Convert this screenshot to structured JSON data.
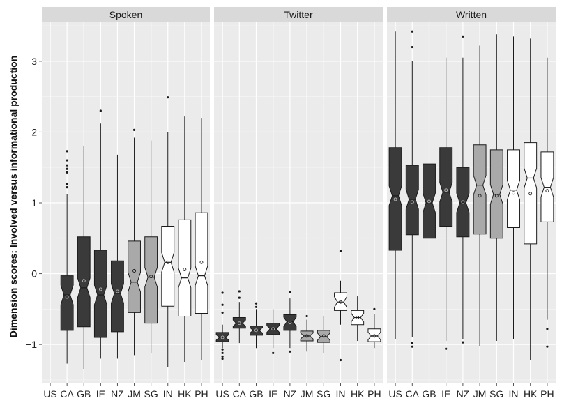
{
  "chart_data": {
    "type": "boxplot",
    "ylabel": "Dimension scores: Involved versus informational production",
    "ylim": [
      -1.55,
      3.55
    ],
    "y_ticks": [
      -1,
      0,
      1,
      2,
      3
    ],
    "y_tick_labels": [
      "−1",
      "0",
      "1",
      "2",
      "3"
    ],
    "categories": [
      "US",
      "CA",
      "GB",
      "IE",
      "NZ",
      "JM",
      "SG",
      "IN",
      "HK",
      "PH"
    ],
    "fill_colors": [
      "#3a3a3a",
      "#3a3a3a",
      "#3a3a3a",
      "#3a3a3a",
      "#3a3a3a",
      "#a9a9a9",
      "#a9a9a9",
      "#ffffff",
      "#ffffff",
      "#ffffff"
    ],
    "panel_background": "#ebebeb",
    "strip_background": "#d9d9d9",
    "grid": true,
    "panels": [
      {
        "name": "Spoken",
        "boxes": [
          null,
          {
            "cat": "CA",
            "min": -1.27,
            "q1": -0.8,
            "med": -0.3,
            "q3": -0.03,
            "max": 1.12,
            "mean": -0.33,
            "outliers": [
              1.22,
              1.27,
              1.43,
              1.48,
              1.53,
              1.6,
              1.73
            ]
          },
          {
            "cat": "GB",
            "min": -1.35,
            "q1": -0.75,
            "med": -0.2,
            "q3": 0.52,
            "max": 1.8,
            "mean": -0.1,
            "outliers": []
          },
          {
            "cat": "IE",
            "min": -1.2,
            "q1": -0.9,
            "med": -0.3,
            "q3": 0.33,
            "max": 2.12,
            "mean": -0.22,
            "outliers": [
              2.3
            ]
          },
          {
            "cat": "NZ",
            "min": -1.2,
            "q1": -0.82,
            "med": -0.28,
            "q3": 0.18,
            "max": 1.68,
            "mean": -0.25,
            "outliers": []
          },
          {
            "cat": "JM",
            "min": -1.15,
            "q1": -0.55,
            "med": -0.12,
            "q3": 0.46,
            "max": 1.92,
            "mean": 0.04,
            "outliers": [
              2.03
            ]
          },
          {
            "cat": "SG",
            "min": -1.12,
            "q1": -0.7,
            "med": -0.05,
            "q3": 0.52,
            "max": 1.88,
            "mean": -0.04,
            "outliers": []
          },
          {
            "cat": "IN",
            "min": -1.32,
            "q1": -0.46,
            "med": 0.16,
            "q3": 0.67,
            "max": 2.0,
            "mean": 0.16,
            "outliers": [
              2.49
            ]
          },
          {
            "cat": "HK",
            "min": -1.25,
            "q1": -0.6,
            "med": -0.06,
            "q3": 0.76,
            "max": 2.22,
            "mean": 0.06,
            "outliers": []
          },
          {
            "cat": "PH",
            "min": -1.22,
            "q1": -0.56,
            "med": -0.03,
            "q3": 0.86,
            "max": 2.2,
            "mean": 0.16,
            "outliers": []
          }
        ]
      },
      {
        "name": "Twitter",
        "boxes": [
          {
            "cat": "US",
            "min": -1.05,
            "q1": -0.96,
            "med": -0.9,
            "q3": -0.83,
            "max": -0.72,
            "mean": -0.9,
            "outliers": [
              -1.07,
              -1.12,
              -1.17,
              -1.2,
              -0.55,
              -0.44,
              -0.27
            ]
          },
          {
            "cat": "CA",
            "min": -0.98,
            "q1": -0.77,
            "med": -0.7,
            "q3": -0.62,
            "max": -0.4,
            "mean": -0.7,
            "outliers": [
              -0.34,
              -0.25
            ]
          },
          {
            "cat": "GB",
            "min": -1.05,
            "q1": -0.87,
            "med": -0.8,
            "q3": -0.74,
            "max": -0.5,
            "mean": -0.8,
            "outliers": [
              -0.47,
              -0.42
            ]
          },
          {
            "cat": "IE",
            "min": -1.05,
            "q1": -0.86,
            "med": -0.78,
            "q3": -0.7,
            "max": -0.5,
            "mean": -0.78,
            "outliers": [
              -1.12
            ]
          },
          {
            "cat": "NZ",
            "min": -1.05,
            "q1": -0.8,
            "med": -0.68,
            "q3": -0.58,
            "max": -0.35,
            "mean": -0.69,
            "outliers": [
              -1.1,
              -0.26
            ]
          },
          {
            "cat": "JM",
            "min": -1.1,
            "q1": -0.95,
            "med": -0.88,
            "q3": -0.81,
            "max": -0.65,
            "mean": -0.88,
            "outliers": [
              -0.6
            ]
          },
          {
            "cat": "SG",
            "min": -1.12,
            "q1": -0.97,
            "med": -0.89,
            "q3": -0.8,
            "max": -0.6,
            "mean": -0.88,
            "outliers": []
          },
          {
            "cat": "IN",
            "min": -0.72,
            "q1": -0.52,
            "med": -0.4,
            "q3": -0.27,
            "max": -0.1,
            "mean": -0.4,
            "outliers": [
              -1.22,
              0.32
            ]
          },
          {
            "cat": "HK",
            "min": -0.95,
            "q1": -0.72,
            "med": -0.62,
            "q3": -0.52,
            "max": -0.32,
            "mean": -0.62,
            "outliers": []
          },
          {
            "cat": "PH",
            "min": -1.05,
            "q1": -0.96,
            "med": -0.88,
            "q3": -0.78,
            "max": -0.57,
            "mean": -0.88,
            "outliers": [
              -0.5
            ]
          }
        ]
      },
      {
        "name": "Written",
        "boxes": [
          {
            "cat": "US",
            "min": -0.92,
            "q1": 0.33,
            "med": 1.1,
            "q3": 1.78,
            "max": 3.42,
            "mean": 1.05,
            "outliers": []
          },
          {
            "cat": "CA",
            "min": -0.9,
            "q1": 0.55,
            "med": 1.05,
            "q3": 1.53,
            "max": 3.0,
            "mean": 1.01,
            "outliers": [
              -0.98,
              -1.03,
              3.2,
              3.42
            ]
          },
          {
            "cat": "GB",
            "min": -0.92,
            "q1": 0.5,
            "med": 1.0,
            "q3": 1.55,
            "max": 2.98,
            "mean": 1.02,
            "outliers": []
          },
          {
            "cat": "IE",
            "min": -0.95,
            "q1": 0.67,
            "med": 1.15,
            "q3": 1.78,
            "max": 3.05,
            "mean": 1.18,
            "outliers": [
              -1.06
            ]
          },
          {
            "cat": "NZ",
            "min": -0.92,
            "q1": 0.52,
            "med": 1.0,
            "q3": 1.5,
            "max": 3.05,
            "mean": 1.01,
            "outliers": [
              -0.97,
              3.35
            ]
          },
          {
            "cat": "JM",
            "min": -1.02,
            "q1": 0.56,
            "med": 1.25,
            "q3": 1.82,
            "max": 3.22,
            "mean": 1.1,
            "outliers": []
          },
          {
            "cat": "SG",
            "min": -0.95,
            "q1": 0.5,
            "med": 1.12,
            "q3": 1.75,
            "max": 3.38,
            "mean": 1.1,
            "outliers": []
          },
          {
            "cat": "IN",
            "min": -0.93,
            "q1": 0.65,
            "med": 1.18,
            "q3": 1.75,
            "max": 3.35,
            "mean": 1.14,
            "outliers": []
          },
          {
            "cat": "HK",
            "min": -1.22,
            "q1": 0.42,
            "med": 1.35,
            "q3": 1.85,
            "max": 3.32,
            "mean": 1.13,
            "outliers": []
          },
          {
            "cat": "PH",
            "min": -0.65,
            "q1": 0.73,
            "med": 1.22,
            "q3": 1.72,
            "max": 3.05,
            "mean": 1.17,
            "outliers": [
              -0.78,
              -1.03
            ]
          }
        ]
      }
    ]
  }
}
